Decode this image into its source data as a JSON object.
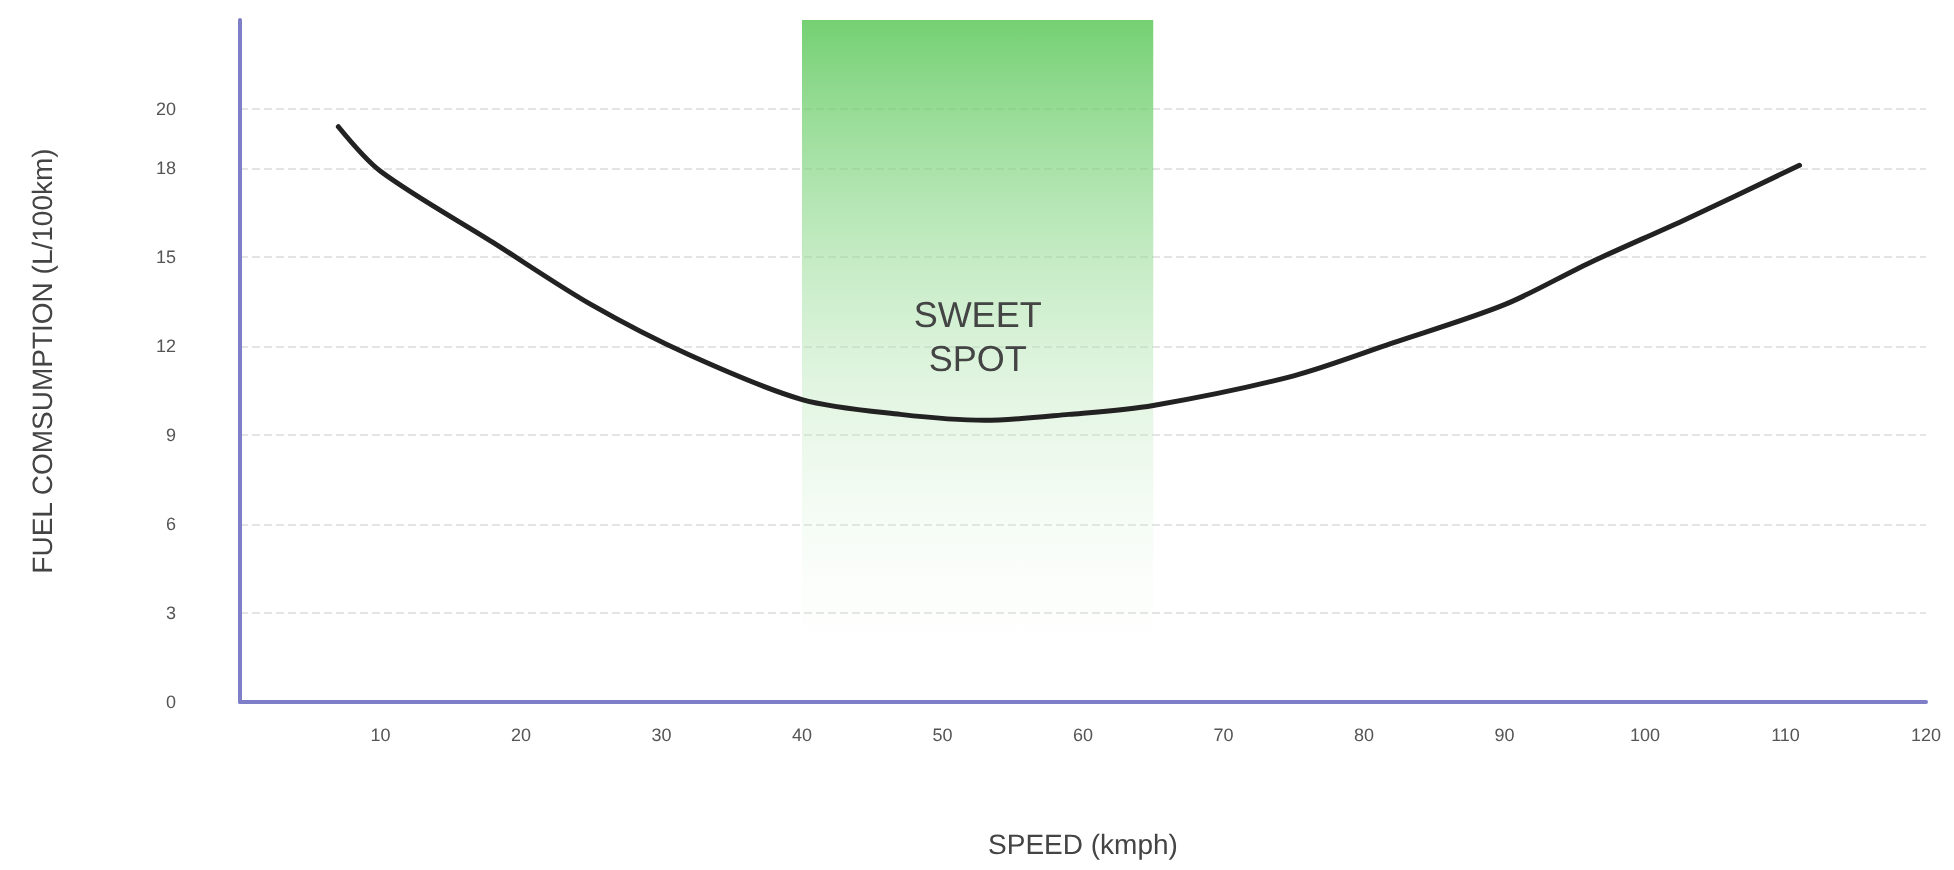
{
  "chart_data": {
    "type": "line",
    "xlabel": "SPEED (kmph)",
    "ylabel": "FUEL COMSUMPTION (L/100km)",
    "x": [
      7,
      10,
      18,
      25,
      32,
      40,
      47,
      53,
      59,
      65,
      75,
      82,
      90,
      96,
      103,
      111
    ],
    "series": [
      {
        "color": "#222222",
        "values": [
          19.4,
          17.9,
          15.5,
          13.4,
          11.7,
          10.2,
          9.7,
          9.5,
          9.7,
          10.0,
          11.0,
          12.1,
          13.4,
          14.8,
          16.3,
          18.1
        ]
      }
    ],
    "xlim": [
      0,
      120
    ],
    "xticks": [
      10,
      20,
      30,
      40,
      50,
      60,
      70,
      80,
      90,
      100,
      110,
      120
    ],
    "ylim": [
      0,
      23
    ],
    "yticks": [
      0,
      3,
      6,
      9,
      12,
      15,
      18,
      20
    ],
    "bands": [
      {
        "axis": "x",
        "from": 40,
        "to": 65,
        "label": "SWEET\nSPOT",
        "color": "#5cc85a"
      }
    ],
    "grid": "y",
    "marker": "none",
    "line_style": "solid"
  }
}
